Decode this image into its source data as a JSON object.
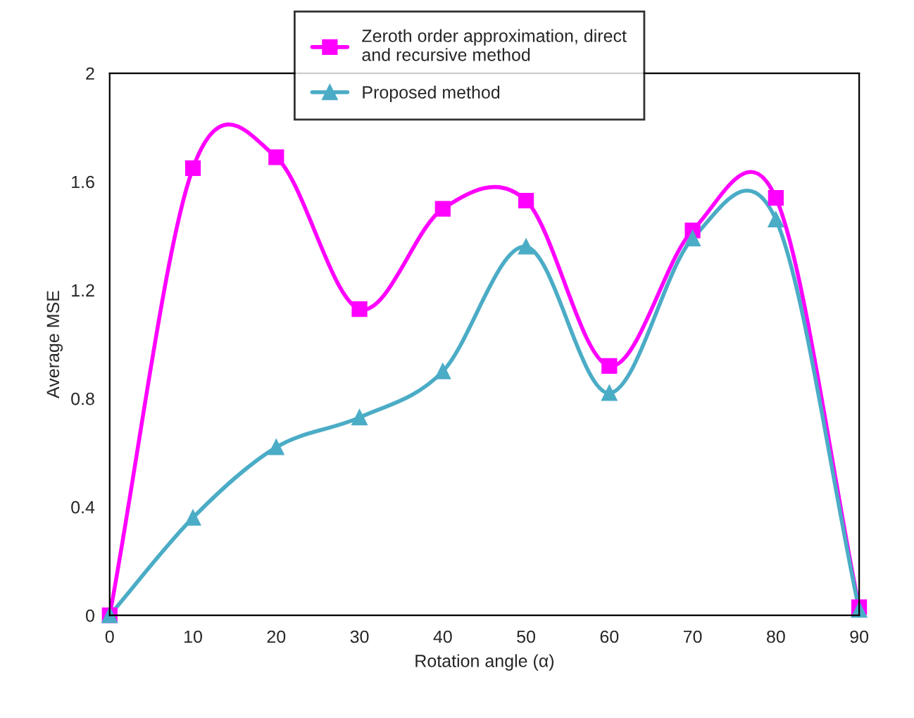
{
  "chart_data": {
    "type": "line",
    "xlabel": "Rotation angle (α)",
    "ylabel": "Average MSE",
    "x": [
      0,
      10,
      20,
      30,
      40,
      50,
      60,
      70,
      80,
      90
    ],
    "series": [
      {
        "name": "Zeroth order approximation, direct\nand recursive method",
        "color": "#ff00ff",
        "marker": "square",
        "values": [
          0,
          1.65,
          1.69,
          1.13,
          1.5,
          1.53,
          0.92,
          1.42,
          1.54,
          0.03
        ]
      },
      {
        "name": "Proposed method",
        "color": "#4bacc6",
        "marker": "triangle",
        "values": [
          0,
          0.36,
          0.62,
          0.73,
          0.9,
          1.36,
          0.82,
          1.39,
          1.46,
          0.02
        ]
      }
    ],
    "xlim": [
      0,
      90
    ],
    "xticks": [
      0,
      10,
      20,
      30,
      40,
      50,
      60,
      70,
      80,
      90
    ],
    "ylim": [
      0,
      2
    ],
    "yticks": [
      0,
      0.4,
      0.8,
      1.2,
      1.6,
      2
    ],
    "grid": false,
    "legend": "top",
    "line_style": "solid"
  }
}
